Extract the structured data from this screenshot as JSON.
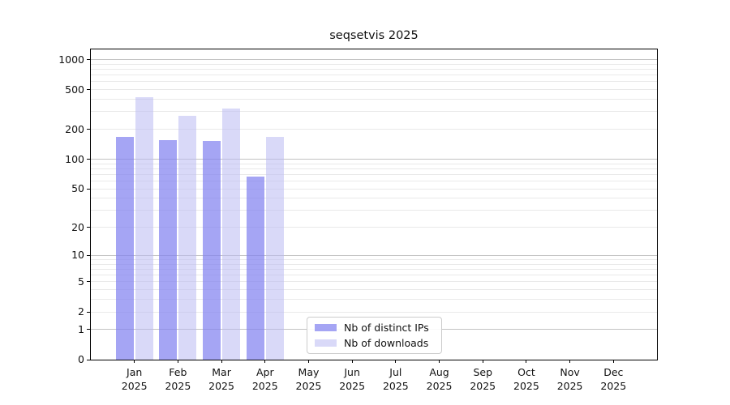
{
  "figure": {
    "title": "seqsetvis 2025",
    "background": "#ffffff"
  },
  "chart_data": {
    "type": "bar",
    "title": "seqsetvis 2025",
    "x_months": [
      "Jan",
      "Feb",
      "Mar",
      "Apr",
      "May",
      "Jun",
      "Jul",
      "Aug",
      "Sep",
      "Oct",
      "Nov",
      "Dec"
    ],
    "x_year": "2025",
    "series": [
      {
        "name": "Nb of distinct IPs",
        "color_hex": "#a5a5f4",
        "css_color": "rgba(130,130,240,0.72)",
        "values": [
          168,
          157,
          154,
          67,
          0,
          0,
          0,
          0,
          0,
          0,
          0,
          0
        ]
      },
      {
        "name": "Nb of downloads",
        "color_hex": "#d8d8f8",
        "css_color": "rgba(185,185,242,0.55)",
        "values": [
          417,
          273,
          325,
          167,
          0,
          0,
          0,
          0,
          0,
          0,
          0,
          0
        ]
      }
    ],
    "y_ticks": [
      0,
      1,
      2,
      5,
      10,
      20,
      50,
      100,
      200,
      500,
      1000
    ],
    "y_scale": "log10(value+1)",
    "y_axis_top_value": 1000,
    "grid": {
      "major_values": [
        1,
        10,
        100,
        1000
      ],
      "major_color": "#c2c2c2",
      "minor_color": "#e9e9e9"
    },
    "legend_position": "bottom-center"
  }
}
